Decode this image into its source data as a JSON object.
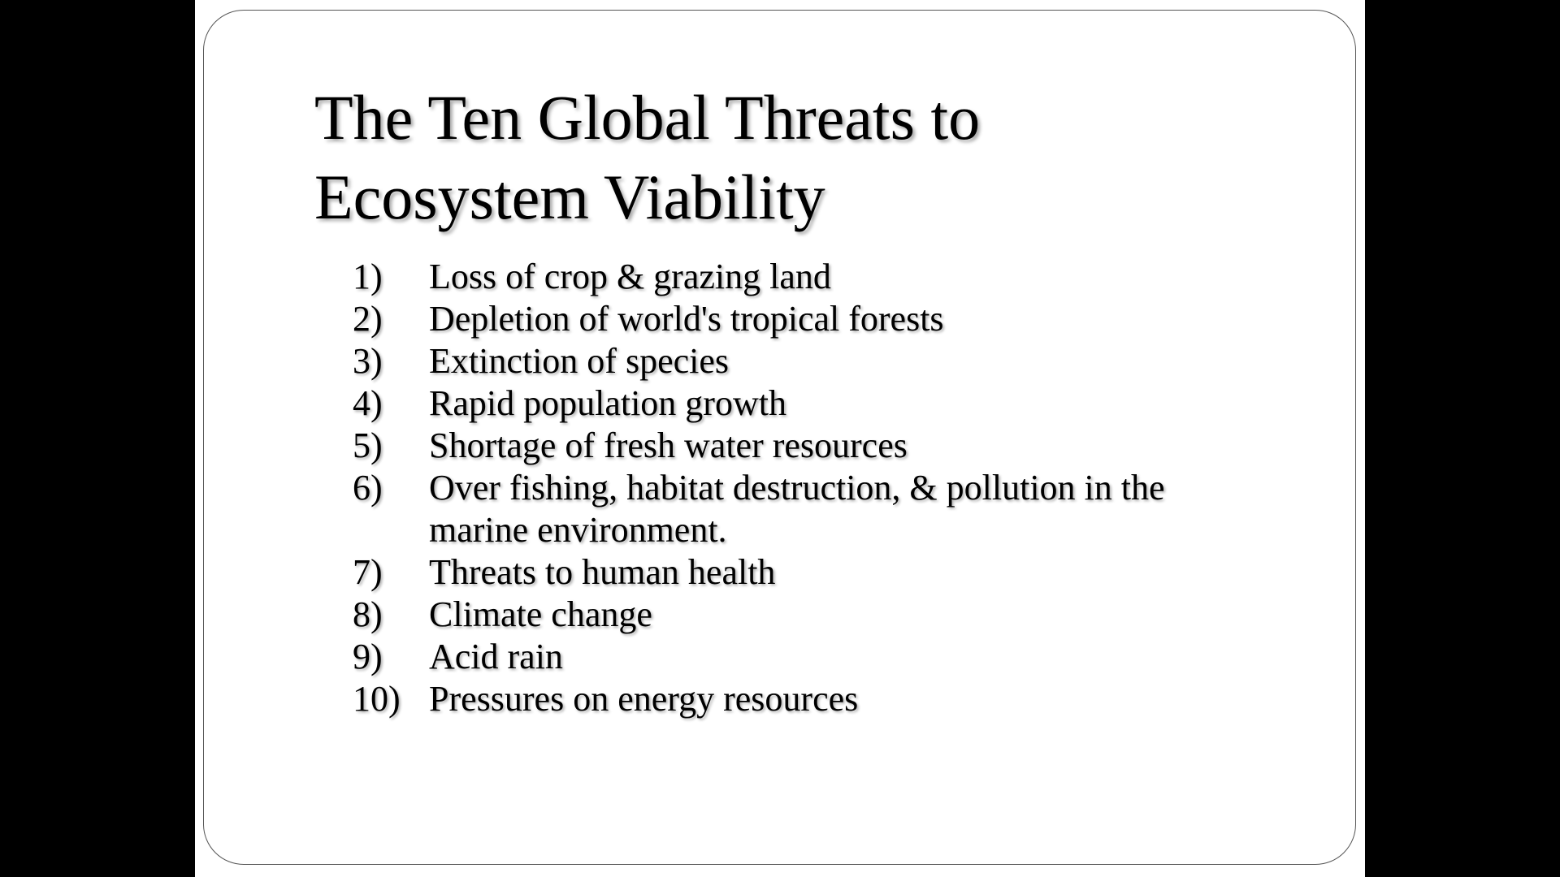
{
  "slide": {
    "title_line1": "The Ten Global Threats to",
    "title_line2": "Ecosystem Viability",
    "threats": [
      {
        "num": "1)",
        "text": "Loss of crop & grazing land"
      },
      {
        "num": "2)",
        "text": "Depletion of world's tropical forests"
      },
      {
        "num": "3)",
        "text": "Extinction of species"
      },
      {
        "num": "4)",
        "text": "Rapid population growth"
      },
      {
        "num": "5)",
        "text": "Shortage of fresh water resources"
      },
      {
        "num": "6)",
        "text": "Over fishing, habitat destruction, & pollution in the marine environment."
      },
      {
        "num": "7)",
        "text": "Threats to human health"
      },
      {
        "num": "8)",
        "text": "Climate change"
      },
      {
        "num": "9)",
        "text": "Acid rain"
      },
      {
        "num": "10)",
        "text": "Pressures on energy resources"
      }
    ]
  },
  "colors": {
    "background": "#000000",
    "slide": "#ffffff",
    "text": "#000000",
    "border": "#555555"
  }
}
